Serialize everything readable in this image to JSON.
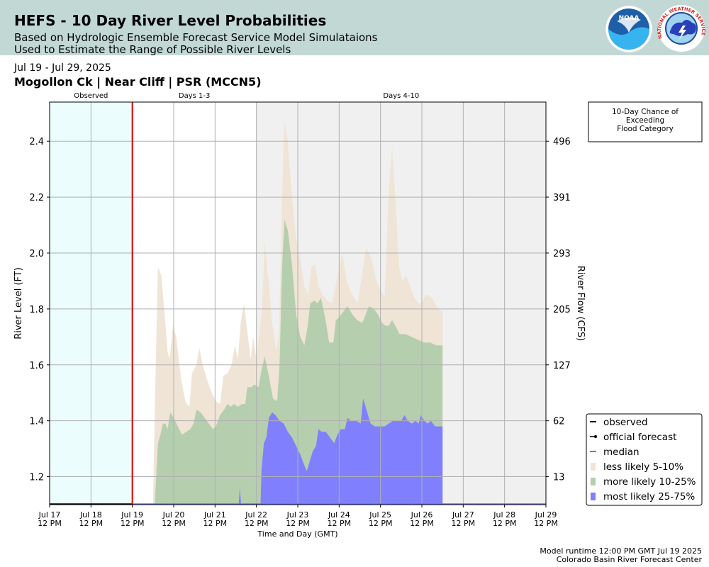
{
  "header": {
    "title": "HEFS - 10 Day River Level Probabilities",
    "subtitle1": "Based on Hydrologic Ensemble Forecast Service Model Simulataions",
    "subtitle2": "Used to Estimate the Range of Possible River Levels"
  },
  "logos": {
    "noaa_text": "NOAA",
    "nws_text": "NATIONAL WEATHER SERVICE"
  },
  "date_range": "Jul 19 - Jul 29, 2025",
  "station": "Mogollon Ck | Near Cliff | PSR (MCCN5)",
  "footer": {
    "runtime": "Model runtime 12:00 PM GMT Jul 19 2025",
    "center": "Colorado Basin River Forecast Center"
  },
  "colors": {
    "observed_band": "#ebfdfd",
    "days4_10_band": "#f0f0f0",
    "less_likely": "#f0e4d6",
    "more_likely": "#b5cfae",
    "most_likely": "#8080ff",
    "forecast_line": "#e00000"
  },
  "chart_data": {
    "type": "area",
    "xlabel": "Time and Day (GMT)",
    "ylabel": "River Level (FT)",
    "y2label": "River Flow (CFS)",
    "ylim": [
      1.1,
      2.54
    ],
    "x_range_days": [
      "Jul 17 12 PM",
      "Jul 29 12 PM"
    ],
    "grid": true,
    "legend_position": "lower-right",
    "x_ticks": [
      {
        "day": 0,
        "l1": "Jul 17",
        "l2": "12 PM"
      },
      {
        "day": 1,
        "l1": "Jul 18",
        "l2": "12 PM"
      },
      {
        "day": 2,
        "l1": "Jul 19",
        "l2": "12 PM"
      },
      {
        "day": 3,
        "l1": "Jul 20",
        "l2": "12 PM"
      },
      {
        "day": 4,
        "l1": "Jul 21",
        "l2": "12 PM"
      },
      {
        "day": 5,
        "l1": "Jul 22",
        "l2": "12 PM"
      },
      {
        "day": 6,
        "l1": "Jul 23",
        "l2": "12 PM"
      },
      {
        "day": 7,
        "l1": "Jul 24",
        "l2": "12 PM"
      },
      {
        "day": 8,
        "l1": "Jul 25",
        "l2": "12 PM"
      },
      {
        "day": 9,
        "l1": "Jul 26",
        "l2": "12 PM"
      },
      {
        "day": 10,
        "l1": "Jul 27",
        "l2": "12 PM"
      },
      {
        "day": 11,
        "l1": "Jul 28",
        "l2": "12 PM"
      },
      {
        "day": 12,
        "l1": "Jul 29",
        "l2": "12 PM"
      }
    ],
    "y_ticks": [
      1.2,
      1.4,
      1.6,
      1.8,
      2.0,
      2.2,
      2.4
    ],
    "y2_ticks": [
      {
        "stage": 1.2,
        "label": "13"
      },
      {
        "stage": 1.4,
        "label": "62"
      },
      {
        "stage": 1.6,
        "label": "127"
      },
      {
        "stage": 1.8,
        "label": "205"
      },
      {
        "stage": 2.0,
        "label": "293"
      },
      {
        "stage": 2.2,
        "label": "391"
      },
      {
        "stage": 2.4,
        "label": "496"
      }
    ],
    "periods": [
      {
        "label": "Observed",
        "start": 0,
        "end": 2
      },
      {
        "label": "Days 1-3",
        "start": 2,
        "end": 5
      },
      {
        "label": "Days 4-10",
        "start": 5,
        "end": 12
      }
    ],
    "forecast_start_day": 2,
    "flood_category_box": "10-Day Chance of\nExceeding\nFlood Category",
    "legend": [
      {
        "label": "observed",
        "kind": "line",
        "color": "#000000"
      },
      {
        "label": "official forecast",
        "kind": "marker",
        "color": "#000000"
      },
      {
        "label": "median",
        "kind": "line",
        "color": "#6b6bff"
      },
      {
        "label": "less likely 5-10%",
        "kind": "patch",
        "color": "#f0e4d6"
      },
      {
        "label": "more likely 10-25%",
        "kind": "patch",
        "color": "#b5cfae"
      },
      {
        "label": "most likely 25-75%",
        "kind": "patch",
        "color": "#8080ff"
      }
    ],
    "series": [
      {
        "name": "less likely 5-10%",
        "points": [
          [
            2.5,
            1.1
          ],
          [
            2.55,
            1.5
          ],
          [
            2.62,
            1.95
          ],
          [
            2.7,
            1.92
          ],
          [
            2.78,
            1.78
          ],
          [
            2.85,
            1.65
          ],
          [
            2.9,
            1.62
          ],
          [
            2.98,
            1.74
          ],
          [
            3.06,
            1.7
          ],
          [
            3.18,
            1.55
          ],
          [
            3.28,
            1.47
          ],
          [
            3.38,
            1.45
          ],
          [
            3.44,
            1.57
          ],
          [
            3.55,
            1.6
          ],
          [
            3.62,
            1.66
          ],
          [
            3.7,
            1.6
          ],
          [
            3.8,
            1.55
          ],
          [
            3.92,
            1.5
          ],
          [
            4.02,
            1.47
          ],
          [
            4.12,
            1.46
          ],
          [
            4.2,
            1.56
          ],
          [
            4.3,
            1.57
          ],
          [
            4.4,
            1.6
          ],
          [
            4.48,
            1.67
          ],
          [
            4.55,
            1.62
          ],
          [
            4.62,
            1.75
          ],
          [
            4.7,
            1.82
          ],
          [
            4.78,
            1.72
          ],
          [
            4.86,
            1.62
          ],
          [
            4.92,
            1.7
          ],
          [
            5.0,
            1.62
          ],
          [
            5.06,
            1.7
          ],
          [
            5.13,
            1.79
          ],
          [
            5.2,
            2.04
          ],
          [
            5.28,
            1.92
          ],
          [
            5.38,
            1.75
          ],
          [
            5.48,
            1.65
          ],
          [
            5.55,
            1.72
          ],
          [
            5.62,
            2.2
          ],
          [
            5.68,
            2.47
          ],
          [
            5.76,
            2.4
          ],
          [
            5.86,
            2.2
          ],
          [
            5.96,
            2.05
          ],
          [
            6.06,
            1.98
          ],
          [
            6.16,
            1.88
          ],
          [
            6.25,
            1.85
          ],
          [
            6.33,
            1.95
          ],
          [
            6.42,
            1.96
          ],
          [
            6.5,
            1.88
          ],
          [
            6.6,
            1.85
          ],
          [
            6.72,
            1.83
          ],
          [
            6.82,
            1.82
          ],
          [
            6.9,
            1.87
          ],
          [
            7.0,
            1.95
          ],
          [
            7.08,
            2.0
          ],
          [
            7.18,
            1.9
          ],
          [
            7.28,
            1.86
          ],
          [
            7.45,
            1.82
          ],
          [
            7.55,
            1.92
          ],
          [
            7.65,
            2.02
          ],
          [
            7.78,
            1.98
          ],
          [
            7.9,
            1.9
          ],
          [
            8.0,
            1.87
          ],
          [
            8.1,
            1.84
          ],
          [
            8.2,
            2.22
          ],
          [
            8.28,
            2.38
          ],
          [
            8.36,
            2.2
          ],
          [
            8.45,
            1.95
          ],
          [
            8.52,
            1.9
          ],
          [
            8.62,
            1.92
          ],
          [
            8.72,
            1.88
          ],
          [
            8.82,
            1.84
          ],
          [
            8.92,
            1.82
          ],
          [
            9.0,
            1.82
          ],
          [
            9.08,
            1.85
          ],
          [
            9.16,
            1.85
          ],
          [
            9.24,
            1.84
          ],
          [
            9.32,
            1.82
          ],
          [
            9.4,
            1.8
          ],
          [
            9.5,
            1.79
          ]
        ]
      },
      {
        "name": "more likely 10-25%",
        "points": [
          [
            2.54,
            1.1
          ],
          [
            2.62,
            1.32
          ],
          [
            2.68,
            1.35
          ],
          [
            2.74,
            1.39
          ],
          [
            2.8,
            1.39
          ],
          [
            2.85,
            1.37
          ],
          [
            2.92,
            1.43
          ],
          [
            3.0,
            1.41
          ],
          [
            3.1,
            1.38
          ],
          [
            3.2,
            1.35
          ],
          [
            3.3,
            1.36
          ],
          [
            3.4,
            1.37
          ],
          [
            3.48,
            1.39
          ],
          [
            3.55,
            1.44
          ],
          [
            3.65,
            1.43
          ],
          [
            3.75,
            1.41
          ],
          [
            3.85,
            1.39
          ],
          [
            3.95,
            1.37
          ],
          [
            4.02,
            1.38
          ],
          [
            4.12,
            1.42
          ],
          [
            4.22,
            1.44
          ],
          [
            4.3,
            1.46
          ],
          [
            4.38,
            1.45
          ],
          [
            4.46,
            1.46
          ],
          [
            4.55,
            1.45
          ],
          [
            4.65,
            1.46
          ],
          [
            4.73,
            1.46
          ],
          [
            4.78,
            1.52
          ],
          [
            4.88,
            1.52
          ],
          [
            4.95,
            1.53
          ],
          [
            5.05,
            1.52
          ],
          [
            5.12,
            1.58
          ],
          [
            5.2,
            1.63
          ],
          [
            5.3,
            1.56
          ],
          [
            5.4,
            1.48
          ],
          [
            5.5,
            1.47
          ],
          [
            5.56,
            1.6
          ],
          [
            5.62,
            1.95
          ],
          [
            5.68,
            2.12
          ],
          [
            5.76,
            2.08
          ],
          [
            5.86,
            1.96
          ],
          [
            5.96,
            1.78
          ],
          [
            6.06,
            1.7
          ],
          [
            6.16,
            1.67
          ],
          [
            6.24,
            1.74
          ],
          [
            6.3,
            1.82
          ],
          [
            6.4,
            1.83
          ],
          [
            6.48,
            1.82
          ],
          [
            6.56,
            1.84
          ],
          [
            6.66,
            1.77
          ],
          [
            6.76,
            1.68
          ],
          [
            6.86,
            1.68
          ],
          [
            6.92,
            1.76
          ],
          [
            7.0,
            1.77
          ],
          [
            7.1,
            1.79
          ],
          [
            7.2,
            1.81
          ],
          [
            7.32,
            1.78
          ],
          [
            7.44,
            1.76
          ],
          [
            7.56,
            1.75
          ],
          [
            7.64,
            1.78
          ],
          [
            7.72,
            1.81
          ],
          [
            7.84,
            1.8
          ],
          [
            7.94,
            1.78
          ],
          [
            8.04,
            1.75
          ],
          [
            8.12,
            1.74
          ],
          [
            8.2,
            1.74
          ],
          [
            8.28,
            1.76
          ],
          [
            8.36,
            1.74
          ],
          [
            8.46,
            1.71
          ],
          [
            8.6,
            1.71
          ],
          [
            8.75,
            1.7
          ],
          [
            8.9,
            1.69
          ],
          [
            9.05,
            1.68
          ],
          [
            9.2,
            1.68
          ],
          [
            9.35,
            1.67
          ],
          [
            9.5,
            1.67
          ]
        ]
      },
      {
        "name": "most likely 25-75%",
        "points": [
          [
            4.57,
            1.1
          ],
          [
            4.6,
            1.16
          ],
          [
            4.63,
            1.1
          ],
          [
            5.1,
            1.1
          ],
          [
            5.12,
            1.22
          ],
          [
            5.18,
            1.32
          ],
          [
            5.24,
            1.34
          ],
          [
            5.3,
            1.41
          ],
          [
            5.38,
            1.43
          ],
          [
            5.46,
            1.42
          ],
          [
            5.56,
            1.4
          ],
          [
            5.66,
            1.39
          ],
          [
            5.76,
            1.36
          ],
          [
            5.86,
            1.34
          ],
          [
            5.96,
            1.31
          ],
          [
            6.06,
            1.28
          ],
          [
            6.16,
            1.24
          ],
          [
            6.22,
            1.22
          ],
          [
            6.28,
            1.25
          ],
          [
            6.36,
            1.29
          ],
          [
            6.44,
            1.31
          ],
          [
            6.5,
            1.37
          ],
          [
            6.58,
            1.36
          ],
          [
            6.68,
            1.36
          ],
          [
            6.78,
            1.34
          ],
          [
            6.88,
            1.32
          ],
          [
            6.96,
            1.35
          ],
          [
            7.04,
            1.37
          ],
          [
            7.14,
            1.37
          ],
          [
            7.2,
            1.41
          ],
          [
            7.3,
            1.4
          ],
          [
            7.42,
            1.4
          ],
          [
            7.52,
            1.39
          ],
          [
            7.58,
            1.48
          ],
          [
            7.66,
            1.44
          ],
          [
            7.76,
            1.39
          ],
          [
            7.86,
            1.38
          ],
          [
            7.96,
            1.38
          ],
          [
            8.1,
            1.38
          ],
          [
            8.2,
            1.39
          ],
          [
            8.3,
            1.4
          ],
          [
            8.4,
            1.4
          ],
          [
            8.5,
            1.4
          ],
          [
            8.58,
            1.42
          ],
          [
            8.66,
            1.4
          ],
          [
            8.76,
            1.39
          ],
          [
            8.84,
            1.4
          ],
          [
            8.92,
            1.39
          ],
          [
            8.98,
            1.42
          ],
          [
            9.06,
            1.4
          ],
          [
            9.14,
            1.39
          ],
          [
            9.22,
            1.4
          ],
          [
            9.32,
            1.38
          ],
          [
            9.42,
            1.38
          ],
          [
            9.5,
            1.38
          ]
        ]
      }
    ]
  }
}
